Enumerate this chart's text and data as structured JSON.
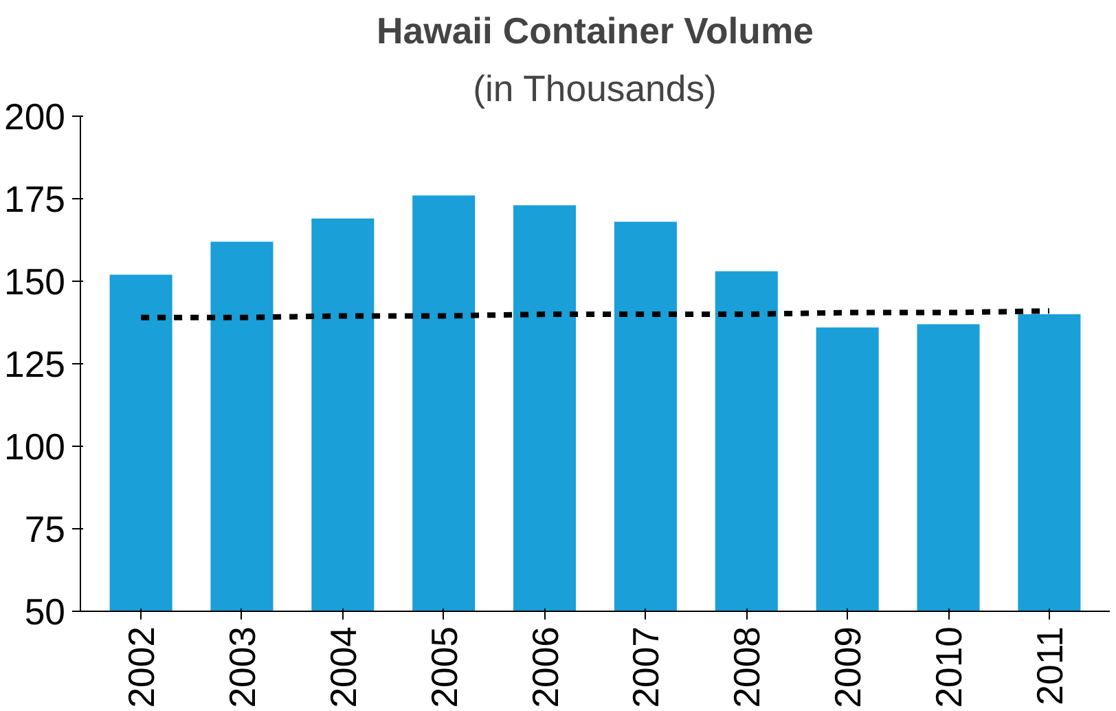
{
  "chart_data": {
    "type": "bar",
    "title": "Hawaii Container Volume",
    "subtitle": "(in Thousands)",
    "categories": [
      "2002",
      "2003",
      "2004",
      "2005",
      "2006",
      "2007",
      "2008",
      "2009",
      "2010",
      "2011"
    ],
    "series": [
      {
        "color": "#1a9fd8",
        "values": [
          152,
          162,
          169,
          176,
          173,
          168,
          153,
          136,
          137,
          140
        ]
      },
      {
        "type": "line",
        "color": "#000000",
        "line_style": "dashed",
        "values": [
          139,
          139,
          139.5,
          139.5,
          140,
          140,
          140,
          140.5,
          140.5,
          141
        ]
      }
    ],
    "ylim": [
      50,
      200
    ],
    "yticks": [
      50,
      75,
      100,
      125,
      150,
      175,
      200
    ],
    "grid": false
  }
}
